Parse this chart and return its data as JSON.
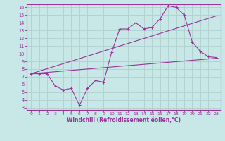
{
  "xlabel": "Windchill (Refroidissement éolien,°C)",
  "background_color": "#c8e8e8",
  "grid_color": "#b0d0d0",
  "line_color": "#993399",
  "spine_color": "#993399",
  "xlim": [
    -0.5,
    23.5
  ],
  "ylim": [
    2.7,
    16.4
  ],
  "xticks": [
    0,
    1,
    2,
    3,
    4,
    5,
    6,
    7,
    8,
    9,
    10,
    11,
    12,
    13,
    14,
    15,
    16,
    17,
    18,
    19,
    20,
    21,
    22,
    23
  ],
  "yticks": [
    3,
    4,
    5,
    6,
    7,
    8,
    9,
    10,
    11,
    12,
    13,
    14,
    15,
    16
  ],
  "line1_x": [
    0,
    1,
    2,
    3,
    4,
    5,
    6,
    7,
    8,
    9,
    10,
    11,
    12,
    13,
    14,
    15,
    16,
    17,
    18,
    19,
    20,
    21,
    22,
    23
  ],
  "line1_y": [
    7.4,
    7.4,
    7.4,
    5.8,
    5.3,
    5.5,
    3.3,
    5.5,
    6.5,
    6.3,
    10.2,
    13.2,
    13.2,
    14.0,
    13.2,
    13.4,
    14.5,
    16.2,
    16.0,
    15.0,
    11.5,
    10.3,
    9.6,
    9.5
  ],
  "line2_x": [
    0,
    23
  ],
  "line2_y": [
    7.4,
    9.4
  ],
  "line3_x": [
    0,
    23
  ],
  "line3_y": [
    7.4,
    14.9
  ],
  "tick_fontsize": 4.5,
  "xlabel_fontsize": 5.5
}
